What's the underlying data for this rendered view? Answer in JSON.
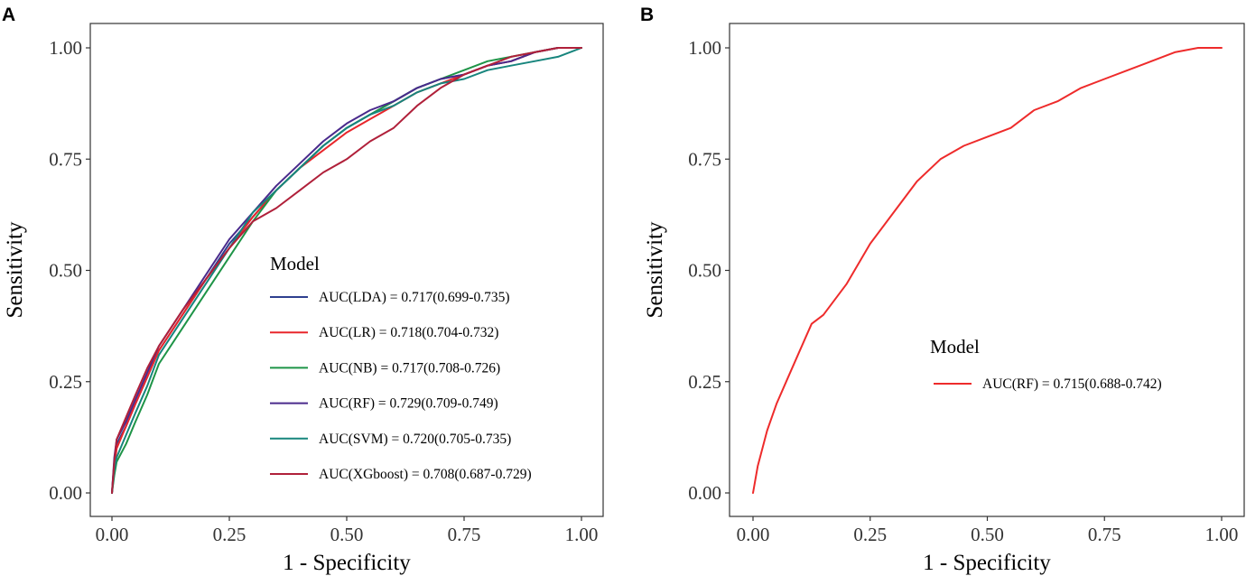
{
  "chart_data": [
    {
      "panel": "A",
      "type": "line",
      "xlabel": "1 - Specificity",
      "ylabel": "Sensitivity",
      "xlim": [
        0,
        1
      ],
      "ylim": [
        0,
        1
      ],
      "xticks": [
        "0.00",
        "0.25",
        "0.50",
        "0.75",
        "1.00"
      ],
      "yticks": [
        "0.00",
        "0.25",
        "0.50",
        "0.75",
        "1.00"
      ],
      "legend_title": "Model",
      "legend_position": "center-right",
      "series": [
        {
          "name": "AUC(LDA) = 0.717(0.699-0.735)",
          "color": "#2E3F8F",
          "x": [
            0,
            0.005,
            0.01,
            0.03,
            0.05,
            0.075,
            0.1,
            0.15,
            0.2,
            0.25,
            0.3,
            0.35,
            0.4,
            0.45,
            0.5,
            0.55,
            0.6,
            0.65,
            0.7,
            0.75,
            0.8,
            0.85,
            0.9,
            0.95,
            1.0
          ],
          "y": [
            0,
            0.07,
            0.11,
            0.15,
            0.2,
            0.26,
            0.32,
            0.4,
            0.48,
            0.56,
            0.62,
            0.68,
            0.73,
            0.78,
            0.82,
            0.85,
            0.88,
            0.91,
            0.93,
            0.94,
            0.96,
            0.97,
            0.99,
            1.0,
            1.0
          ]
        },
        {
          "name": "AUC(LR) = 0.718(0.704-0.732)",
          "color": "#E8262B",
          "x": [
            0,
            0.005,
            0.01,
            0.03,
            0.05,
            0.075,
            0.1,
            0.15,
            0.2,
            0.25,
            0.3,
            0.35,
            0.4,
            0.45,
            0.5,
            0.55,
            0.6,
            0.65,
            0.7,
            0.75,
            0.8,
            0.85,
            0.9,
            0.95,
            1.0
          ],
          "y": [
            0,
            0.06,
            0.1,
            0.15,
            0.2,
            0.26,
            0.32,
            0.4,
            0.48,
            0.55,
            0.62,
            0.68,
            0.73,
            0.77,
            0.81,
            0.84,
            0.87,
            0.9,
            0.92,
            0.94,
            0.96,
            0.97,
            0.99,
            1.0,
            1.0
          ]
        },
        {
          "name": "AUC(NB) = 0.717(0.708-0.726)",
          "color": "#1E9447",
          "x": [
            0,
            0.005,
            0.01,
            0.03,
            0.05,
            0.075,
            0.1,
            0.15,
            0.2,
            0.25,
            0.3,
            0.35,
            0.4,
            0.45,
            0.5,
            0.55,
            0.6,
            0.65,
            0.7,
            0.75,
            0.8,
            0.85,
            0.9,
            0.95,
            1.0
          ],
          "y": [
            0,
            0.04,
            0.07,
            0.11,
            0.16,
            0.22,
            0.29,
            0.37,
            0.45,
            0.53,
            0.61,
            0.68,
            0.73,
            0.78,
            0.82,
            0.85,
            0.88,
            0.91,
            0.93,
            0.95,
            0.97,
            0.98,
            0.99,
            1.0,
            1.0
          ]
        },
        {
          "name": "AUC(RF) = 0.729(0.709-0.749)",
          "color": "#4A2A8C",
          "x": [
            0,
            0.005,
            0.01,
            0.03,
            0.05,
            0.075,
            0.1,
            0.15,
            0.2,
            0.25,
            0.3,
            0.35,
            0.4,
            0.45,
            0.5,
            0.55,
            0.6,
            0.65,
            0.7,
            0.75,
            0.8,
            0.85,
            0.9,
            0.95,
            1.0
          ],
          "y": [
            0,
            0.08,
            0.12,
            0.16,
            0.21,
            0.27,
            0.33,
            0.41,
            0.49,
            0.57,
            0.63,
            0.69,
            0.74,
            0.79,
            0.83,
            0.86,
            0.88,
            0.91,
            0.93,
            0.94,
            0.96,
            0.97,
            0.99,
            1.0,
            1.0
          ]
        },
        {
          "name": "AUC(SVM) = 0.720(0.705-0.735)",
          "color": "#17857D",
          "x": [
            0,
            0.005,
            0.01,
            0.03,
            0.05,
            0.075,
            0.1,
            0.15,
            0.2,
            0.25,
            0.3,
            0.35,
            0.4,
            0.45,
            0.5,
            0.55,
            0.6,
            0.65,
            0.7,
            0.75,
            0.8,
            0.85,
            0.9,
            0.95,
            1.0
          ],
          "y": [
            0,
            0.05,
            0.08,
            0.13,
            0.18,
            0.24,
            0.31,
            0.39,
            0.47,
            0.55,
            0.63,
            0.68,
            0.73,
            0.78,
            0.82,
            0.85,
            0.87,
            0.9,
            0.92,
            0.93,
            0.95,
            0.96,
            0.97,
            0.98,
            1.0
          ]
        },
        {
          "name": "AUC(XGboost) = 0.708(0.687-0.729)",
          "color": "#B0203A",
          "x": [
            0,
            0.005,
            0.01,
            0.03,
            0.05,
            0.075,
            0.1,
            0.15,
            0.2,
            0.25,
            0.3,
            0.35,
            0.4,
            0.45,
            0.5,
            0.55,
            0.6,
            0.65,
            0.7,
            0.75,
            0.8,
            0.85,
            0.9,
            0.95,
            1.0
          ],
          "y": [
            0,
            0.07,
            0.12,
            0.17,
            0.22,
            0.28,
            0.33,
            0.41,
            0.48,
            0.55,
            0.61,
            0.64,
            0.68,
            0.72,
            0.75,
            0.79,
            0.82,
            0.87,
            0.91,
            0.94,
            0.96,
            0.98,
            0.99,
            1.0,
            1.0
          ]
        }
      ]
    },
    {
      "panel": "B",
      "type": "line",
      "xlabel": "1 - Specificity",
      "ylabel": "Sensitivity",
      "xlim": [
        0,
        1
      ],
      "ylim": [
        0,
        1
      ],
      "xticks": [
        "0.00",
        "0.25",
        "0.50",
        "0.75",
        "1.00"
      ],
      "yticks": [
        "0.00",
        "0.25",
        "0.50",
        "0.75",
        "1.00"
      ],
      "legend_title": "Model",
      "legend_position": "center-right",
      "series": [
        {
          "name": "AUC(RF) = 0.715(0.688-0.742)",
          "color": "#EE2B2B",
          "x": [
            0,
            0.005,
            0.01,
            0.02,
            0.03,
            0.05,
            0.075,
            0.1,
            0.125,
            0.15,
            0.2,
            0.25,
            0.3,
            0.35,
            0.4,
            0.45,
            0.5,
            0.55,
            0.6,
            0.65,
            0.7,
            0.75,
            0.8,
            0.85,
            0.9,
            0.95,
            1.0
          ],
          "y": [
            0,
            0.03,
            0.06,
            0.1,
            0.14,
            0.2,
            0.26,
            0.32,
            0.38,
            0.4,
            0.47,
            0.56,
            0.63,
            0.7,
            0.75,
            0.78,
            0.8,
            0.82,
            0.86,
            0.88,
            0.91,
            0.93,
            0.95,
            0.97,
            0.99,
            1.0,
            1.0
          ]
        }
      ]
    }
  ]
}
